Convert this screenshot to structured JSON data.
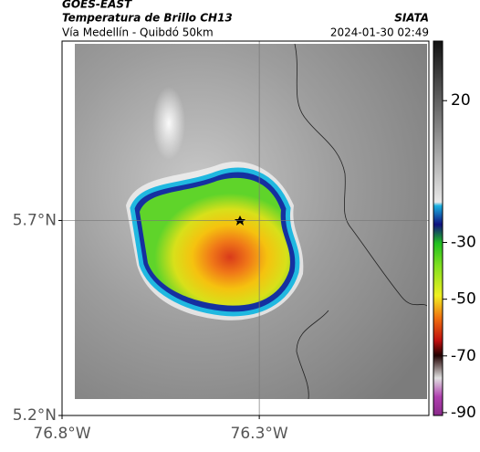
{
  "header": {
    "title": "GOES-EAST",
    "subtitle": "Temperatura de Brillo CH13",
    "source": "SIATA",
    "location": "Vía Medellín - Quibdó 50km",
    "timestamp": "2024-01-30 02:49"
  },
  "map": {
    "xlim": [
      -76.8,
      -75.87
    ],
    "ylim": [
      5.2,
      6.16
    ],
    "xticks": [
      {
        "value": -76.8,
        "label": "76.8°W"
      },
      {
        "value": -76.3,
        "label": "76.3°W"
      }
    ],
    "yticks": [
      {
        "value": 5.2,
        "label": "5.2°N"
      },
      {
        "value": 5.7,
        "label": "5.7°N"
      }
    ],
    "grid": true
  },
  "colorbar": {
    "lim": [
      -91,
      41
    ],
    "ticks": [
      20,
      -30,
      -50,
      -70,
      -90
    ]
  }
}
